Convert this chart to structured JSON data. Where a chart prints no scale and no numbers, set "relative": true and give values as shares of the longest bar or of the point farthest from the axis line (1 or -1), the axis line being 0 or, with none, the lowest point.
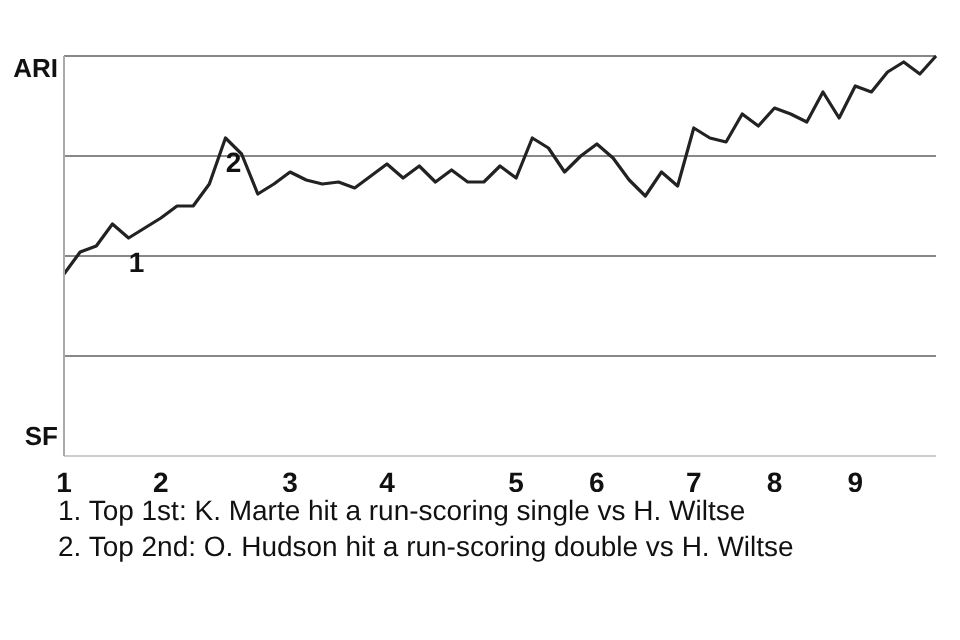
{
  "chart_data": {
    "type": "line",
    "relative": true,
    "categories": [
      "1",
      null,
      null,
      null,
      null,
      null,
      "2",
      null,
      null,
      null,
      null,
      null,
      null,
      null,
      "3",
      null,
      null,
      null,
      null,
      null,
      "4",
      null,
      null,
      null,
      null,
      null,
      null,
      null,
      "5",
      null,
      null,
      null,
      null,
      "6",
      null,
      null,
      null,
      null,
      null,
      "7",
      null,
      null,
      null,
      null,
      "8",
      null,
      null,
      null,
      null,
      "9",
      null,
      null,
      null,
      null,
      null
    ],
    "series": [
      {
        "color": "#222222",
        "values": [
          0.455,
          0.51,
          0.525,
          0.58,
          0.545,
          0.57,
          0.595,
          0.625,
          0.625,
          0.68,
          0.795,
          0.755,
          0.655,
          0.68,
          0.71,
          0.69,
          0.68,
          0.685,
          0.67,
          0.7,
          0.73,
          0.695,
          0.725,
          0.685,
          0.715,
          0.685,
          0.685,
          0.725,
          0.695,
          0.795,
          0.77,
          0.71,
          0.75,
          0.78,
          0.745,
          0.69,
          0.65,
          0.71,
          0.675,
          0.82,
          0.795,
          0.785,
          0.855,
          0.825,
          0.87,
          0.855,
          0.835,
          0.91,
          0.845,
          0.925,
          0.91,
          0.96,
          0.985,
          0.955,
          1
        ]
      }
    ],
    "grid": "y",
    "marker": "none",
    "line_style": "solid",
    "legend": false,
    "annotations": [
      "ARI",
      "SF",
      {
        "text": "1",
        "y": 0.545
      },
      {
        "text": "2",
        "y": 0.795
      },
      "1. Top 1st: K. Marte hit a run-scoring single vs H. Wiltse",
      "2. Top 2nd: O. Hudson hit a run-scoring double vs H. Wiltse"
    ]
  }
}
